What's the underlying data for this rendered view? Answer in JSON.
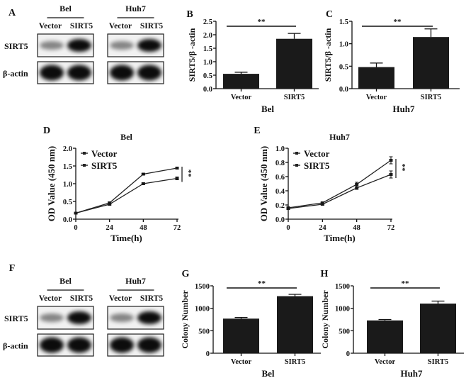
{
  "colors": {
    "bar": "#1a1a1a",
    "line": "#222222",
    "axis": "#111111"
  },
  "blots": [
    {
      "panel": "A",
      "row_labels": [
        "SIRT5",
        "β-actin"
      ],
      "groups": [
        {
          "title": "Bel",
          "lanes": [
            "Vector",
            "SIRT5"
          ]
        },
        {
          "title": "Huh7",
          "lanes": [
            "Vector",
            "SIRT5"
          ]
        }
      ]
    },
    {
      "panel": "F",
      "row_labels": [
        "SIRT5",
        "β-actin"
      ],
      "groups": [
        {
          "title": "Bel",
          "lanes": [
            "Vector",
            "SIRT5"
          ]
        },
        {
          "title": "Huh7",
          "lanes": [
            "Vector",
            "SIRT5"
          ]
        }
      ]
    }
  ],
  "chart_data": [
    {
      "panel": "B",
      "type": "bar",
      "categories": [
        "Vector",
        "SIRT5"
      ],
      "values": [
        0.55,
        1.85
      ],
      "errors": [
        0.06,
        0.2
      ],
      "xlabel": "Bel",
      "ylabel": "SIRT5/β -actin",
      "ylim": [
        0,
        2.5
      ],
      "yticks": [
        "0.0",
        "0.5",
        "1.0",
        "1.5",
        "2.0",
        "2.5"
      ],
      "significance": "**"
    },
    {
      "panel": "C",
      "type": "bar",
      "categories": [
        "Vector",
        "SIRT5"
      ],
      "values": [
        0.48,
        1.15
      ],
      "errors": [
        0.09,
        0.18
      ],
      "xlabel": "Huh7",
      "ylabel": "SIRT5/β -actin",
      "ylim": [
        0,
        1.5
      ],
      "yticks": [
        "0.0",
        "0.5",
        "1.0",
        "1.5"
      ],
      "significance": "**"
    },
    {
      "panel": "D",
      "type": "line",
      "title": "Bel",
      "x": [
        0,
        24,
        48,
        72
      ],
      "xticks": [
        "0",
        "24",
        "48",
        "72"
      ],
      "xlabel": "Time(h)",
      "ylabel": "OD Value (450 nm)",
      "ylim": [
        0,
        2.0
      ],
      "yticks": [
        "0.0",
        "0.5",
        "1.0",
        "1.5",
        "2.0"
      ],
      "legend": "top-left",
      "series": [
        {
          "name": "Vector",
          "values": [
            0.17,
            0.42,
            1.0,
            1.15
          ],
          "errors": [
            0.01,
            0.02,
            0.02,
            0.04
          ]
        },
        {
          "name": "SIRT5",
          "values": [
            0.17,
            0.46,
            1.27,
            1.44
          ],
          "errors": [
            0.01,
            0.02,
            0.02,
            0.03
          ]
        }
      ],
      "significance": "**"
    },
    {
      "panel": "E",
      "type": "line",
      "title": "Huh7",
      "x": [
        0,
        24,
        48,
        72
      ],
      "xticks": [
        "0",
        "24",
        "48",
        "72"
      ],
      "xlabel": "Time(h)",
      "ylabel": "OD Value (450 nm)",
      "ylim": [
        0,
        1.0
      ],
      "yticks": [
        "0.0",
        "0.2",
        "0.4",
        "0.6",
        "0.8",
        "1.0"
      ],
      "legend": "top-left",
      "series": [
        {
          "name": "Vector",
          "values": [
            0.15,
            0.21,
            0.44,
            0.63
          ],
          "errors": [
            0.01,
            0.01,
            0.02,
            0.05
          ]
        },
        {
          "name": "SIRT5",
          "values": [
            0.16,
            0.23,
            0.49,
            0.83
          ],
          "errors": [
            0.01,
            0.01,
            0.03,
            0.05
          ]
        }
      ],
      "significance": "**"
    },
    {
      "panel": "G",
      "type": "bar",
      "categories": [
        "Vector",
        "SIRT5"
      ],
      "values": [
        770,
        1270
      ],
      "errors": [
        25,
        40
      ],
      "xlabel": "Bel",
      "ylabel": "Colony Number",
      "ylim": [
        0,
        1500
      ],
      "yticks": [
        "0",
        "500",
        "1000",
        "1500"
      ],
      "significance": "**"
    },
    {
      "panel": "H",
      "type": "bar",
      "categories": [
        "Vector",
        "SIRT5"
      ],
      "values": [
        730,
        1105
      ],
      "errors": [
        20,
        55
      ],
      "xlabel": "Huh7",
      "ylabel": "Colony Number",
      "ylim": [
        0,
        1500
      ],
      "yticks": [
        "0",
        "500",
        "1000",
        "1500"
      ],
      "significance": "**"
    }
  ]
}
